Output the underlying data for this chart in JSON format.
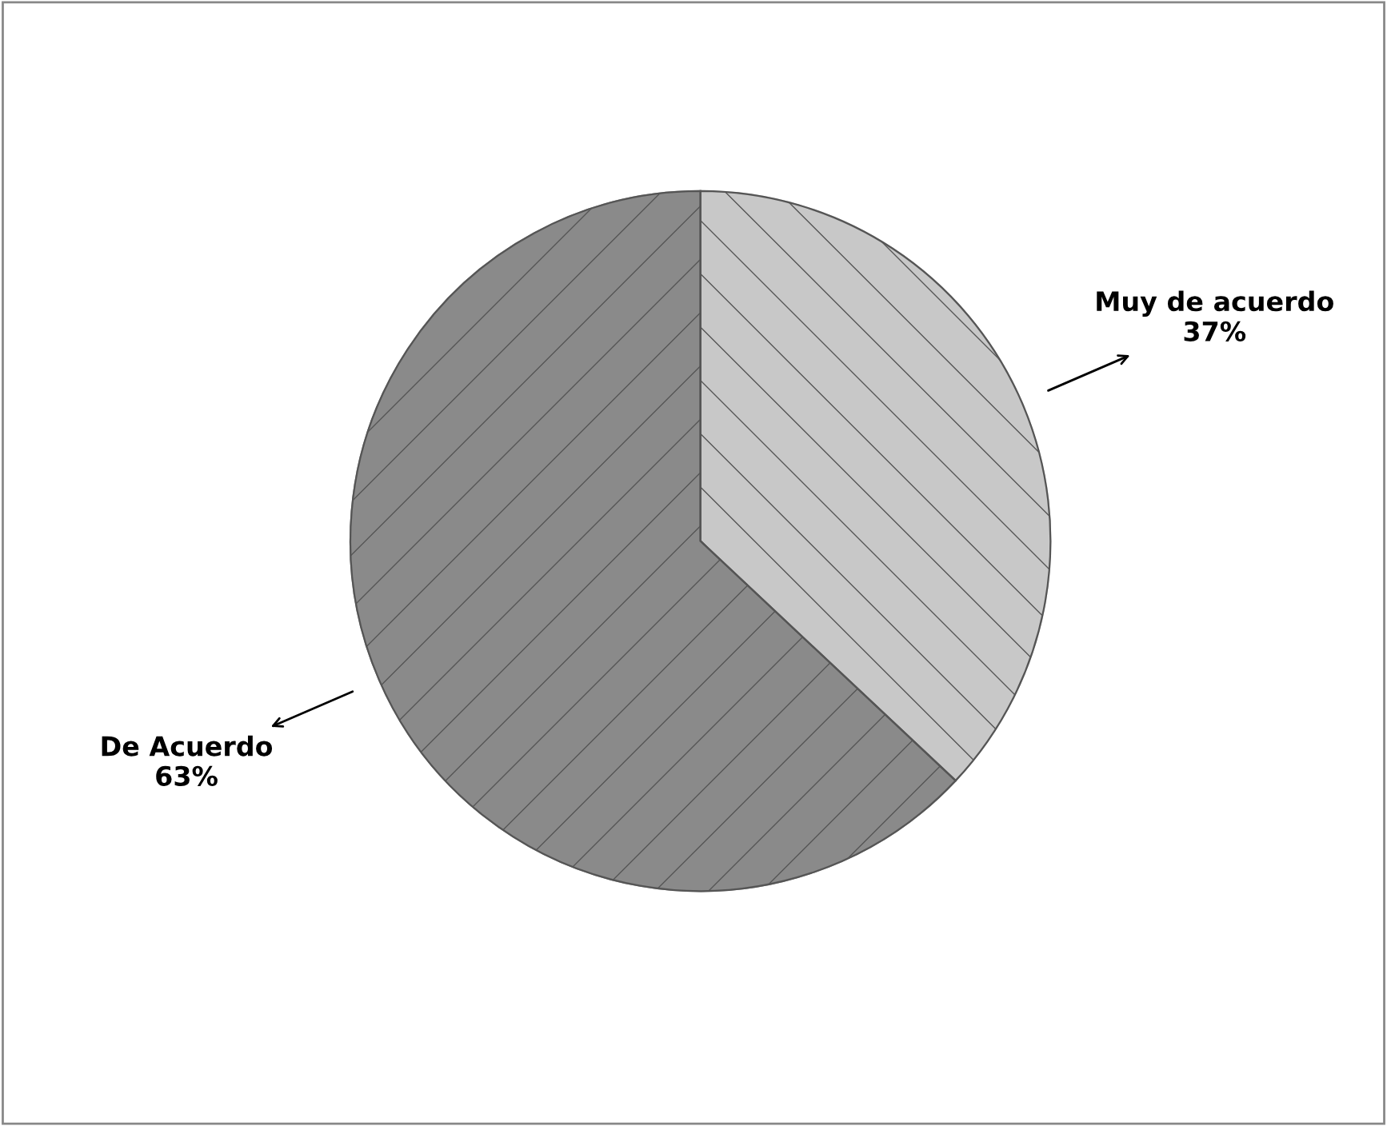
{
  "chart_data": {
    "type": "pie",
    "categories": [
      "Muy de acuerdo",
      "De Acuerdo"
    ],
    "values": [
      37,
      63
    ],
    "value_labels": [
      "37%",
      "63%"
    ],
    "colors": [
      "#c8c8c8",
      "#8a8a8a"
    ]
  }
}
